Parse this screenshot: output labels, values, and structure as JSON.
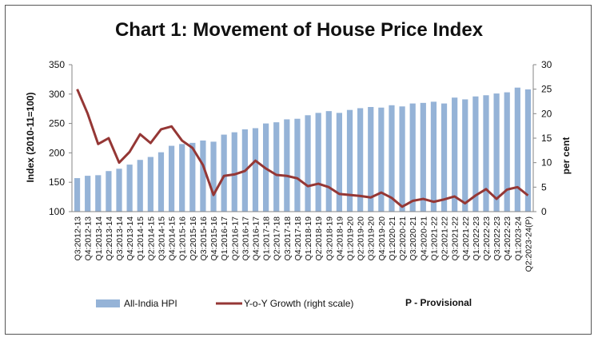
{
  "chart_data": {
    "type": "bar",
    "title": "Chart 1: Movement of House Price Index",
    "ylabel": "Index (2010-11=100)",
    "y2label": "per cent",
    "ylim": [
      100,
      350
    ],
    "yticks": [
      100,
      150,
      200,
      250,
      300,
      350
    ],
    "y2lim": [
      0,
      30
    ],
    "y2ticks": [
      0,
      5,
      10,
      15,
      20,
      25,
      30
    ],
    "categories": [
      "Q3:2012-13",
      "Q4:2012-13",
      "Q1:2013-14",
      "Q2:2013-14",
      "Q3:2013-14",
      "Q4:2013-14",
      "Q1:2014-15",
      "Q2:2014-15",
      "Q3:2014-15",
      "Q4:2014-15",
      "Q1:2015-16",
      "Q2:2015-16",
      "Q3:2015-16",
      "Q4:2015-16",
      "Q1:2016-17",
      "Q2:2016-17",
      "Q3:2016-17",
      "Q4:2016-17",
      "Q1:2017-18",
      "Q2:2017-18",
      "Q3:2017-18",
      "Q4:2017-18",
      "Q1:2018-19",
      "Q2:2018-19",
      "Q3:2018-19",
      "Q4:2018-19",
      "Q1:2019-20",
      "Q2:2019-20",
      "Q3:2019-20",
      "Q4:2019-20",
      "Q1:2020-21",
      "Q2:2020-21",
      "Q3:2020-21",
      "Q4:2020-21",
      "Q1:2021-22",
      "Q2:2021-22",
      "Q3:2021-22",
      "Q4:2021-22",
      "Q1:2022-23",
      "Q2:2022-23",
      "Q3:2022-23",
      "Q4:2022-23",
      "Q1:2023-24",
      "Q2:2023-24(P)"
    ],
    "xtick_labels": [
      "Q3:2012-13",
      "Q4:2012-13",
      "Q1:2013-14",
      "Q2:2013-14",
      "Q3:2013-14",
      "Q4:2013-14",
      "Q1:2014-15",
      "Q2:2014-15",
      "Q3:2014-15",
      "Q4:2014-15",
      "Q1:2015-16",
      "Q2:2015-16",
      "Q3:2015-16",
      "Q4:2015-16",
      "Q1:2016-17",
      "Q2:2016-17",
      "Q3:2016-17",
      "Q4:2016-17",
      "Q1:2017-18",
      "Q2:2017-18",
      "Q3:2017-18",
      "Q4:2017-18",
      "Q1:2018-19",
      "Q2:2018-19",
      "Q3:2018-19",
      "Q4:2018-19",
      "Q1:2019-20",
      "Q2:2019-20",
      "Q3:2019-20",
      "Q4:2019-20",
      "Q1:2020-21",
      "Q2:2020-21",
      "Q3:2020-21",
      "Q4:2020-21",
      "Q1:2021-22",
      "Q2:2021-22",
      "Q3:2021-22",
      "Q4:2021-22",
      "Q1:2022-23",
      "Q2:2022-23",
      "Q3:2022-23",
      "Q4:2022-23",
      "Q1:2023-24",
      "Q2:2023-24(P)"
    ],
    "series": [
      {
        "name": "All-India HPI",
        "kind": "bar",
        "axis": "left",
        "color": "#95b3d7",
        "values": [
          157,
          161,
          162,
          169,
          173,
          180,
          188,
          193,
          201,
          212,
          215,
          217,
          221,
          219,
          231,
          235,
          240,
          242,
          250,
          252,
          257,
          258,
          264,
          268,
          271,
          268,
          273,
          276,
          278,
          277,
          281,
          279,
          284,
          285,
          287,
          284,
          294,
          291,
          296,
          298,
          301,
          303,
          311,
          308
        ]
      },
      {
        "name": "Y-o-Y Growth (right scale)",
        "kind": "line",
        "axis": "right",
        "color": "#953735",
        "values": [
          25.0,
          20.0,
          13.8,
          15.0,
          10.0,
          12.2,
          15.8,
          14.0,
          16.8,
          17.4,
          14.5,
          13.0,
          9.5,
          3.4,
          7.3,
          7.6,
          8.3,
          10.4,
          8.8,
          7.5,
          7.3,
          6.8,
          5.2,
          5.7,
          5.0,
          3.6,
          3.4,
          3.2,
          2.9,
          3.9,
          2.8,
          1.0,
          2.2,
          2.6,
          2.0,
          2.5,
          3.1,
          1.7,
          3.3,
          4.6,
          2.6,
          4.5,
          5.0,
          3.3
        ]
      }
    ],
    "legend": {
      "bar_label": "All-India HPI",
      "line_label": "Y-o-Y Growth (right scale)",
      "note": "P - Provisional"
    }
  }
}
